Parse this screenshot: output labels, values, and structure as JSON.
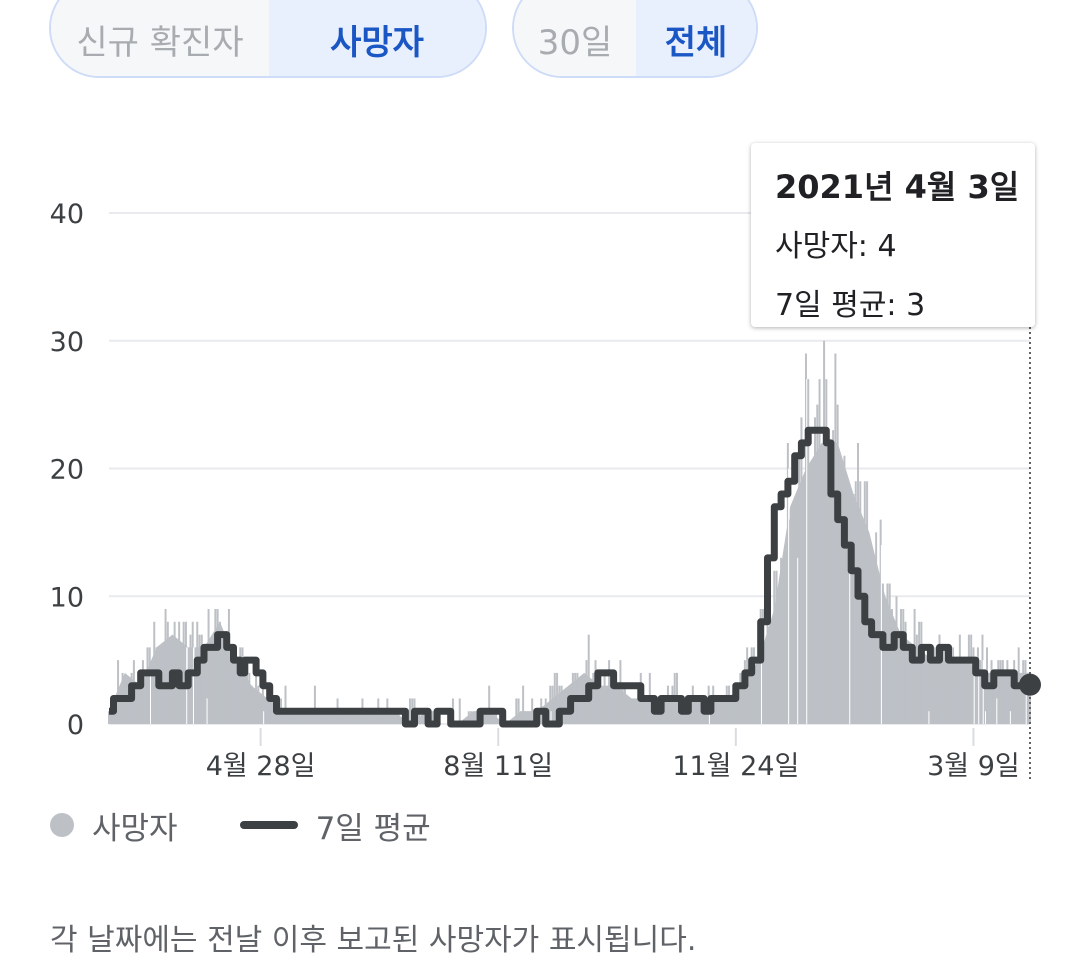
{
  "metric_toggle": {
    "options": [
      {
        "label": "신규 확진자",
        "selected": false
      },
      {
        "label": "사망자",
        "selected": true
      }
    ]
  },
  "range_toggle": {
    "options": [
      {
        "label": "30일",
        "selected": false
      },
      {
        "label": "전체",
        "selected": true
      }
    ]
  },
  "tooltip": {
    "date": "2021년 4월 3일",
    "deaths_text": "사망자: 4",
    "avg_text": "7일 평균: 3"
  },
  "legend": {
    "daily_label": "사망자",
    "avg_label": "7일 평균"
  },
  "footnote": "각 날짜에는 전날 이후 보고된 사망자가 표시됩니다.",
  "colors": {
    "bar": "#bdc1c6",
    "area": "#bdc1c6",
    "line": "#3c4043",
    "grid": "#e8eaed",
    "accent": "#1a56c4"
  },
  "chart_data": {
    "type": "bar",
    "title": "",
    "xlabel": "",
    "ylabel": "",
    "ylim": [
      0,
      43
    ],
    "yticks": [
      0,
      10,
      20,
      30,
      40
    ],
    "x_range": [
      "2020-02-21",
      "2021-04-03"
    ],
    "xticks": [
      {
        "date": "2020-04-28",
        "label": "4월 28일"
      },
      {
        "date": "2020-08-11",
        "label": "8월 11일"
      },
      {
        "date": "2020-11-24",
        "label": "11월 24일"
      },
      {
        "date": "2021-03-09",
        "label": "3월 9일"
      }
    ],
    "series": [
      {
        "name": "사망자",
        "kind": "daily_bars",
        "points": [
          [
            "2020-02-21",
            1
          ],
          [
            "2020-02-28",
            4
          ],
          [
            "2020-03-06",
            3
          ],
          [
            "2020-03-13",
            6
          ],
          [
            "2020-03-20",
            7
          ],
          [
            "2020-03-27",
            6
          ],
          [
            "2020-04-03",
            6
          ],
          [
            "2020-04-10",
            8
          ],
          [
            "2020-04-17",
            5
          ],
          [
            "2020-04-24",
            3
          ],
          [
            "2020-05-01",
            2
          ],
          [
            "2020-05-08",
            1
          ],
          [
            "2020-05-15",
            1
          ],
          [
            "2020-05-22",
            1
          ],
          [
            "2020-05-29",
            1
          ],
          [
            "2020-06-05",
            1
          ],
          [
            "2020-06-12",
            1
          ],
          [
            "2020-06-19",
            1
          ],
          [
            "2020-06-26",
            1
          ],
          [
            "2020-07-03",
            0
          ],
          [
            "2020-07-10",
            1
          ],
          [
            "2020-07-17",
            0
          ],
          [
            "2020-07-24",
            0
          ],
          [
            "2020-07-31",
            1
          ],
          [
            "2020-08-07",
            1
          ],
          [
            "2020-08-14",
            0
          ],
          [
            "2020-08-21",
            1
          ],
          [
            "2020-08-28",
            1
          ],
          [
            "2020-09-04",
            2
          ],
          [
            "2020-09-11",
            3
          ],
          [
            "2020-09-18",
            4
          ],
          [
            "2020-09-25",
            3
          ],
          [
            "2020-10-02",
            3
          ],
          [
            "2020-10-09",
            2
          ],
          [
            "2020-10-16",
            2
          ],
          [
            "2020-10-23",
            2
          ],
          [
            "2020-10-30",
            2
          ],
          [
            "2020-11-06",
            2
          ],
          [
            "2020-11-13",
            2
          ],
          [
            "2020-11-20",
            2
          ],
          [
            "2020-11-27",
            3
          ],
          [
            "2020-12-04",
            5
          ],
          [
            "2020-12-11",
            9
          ],
          [
            "2020-12-18",
            17
          ],
          [
            "2020-12-25",
            20
          ],
          [
            "2021-01-01",
            22
          ],
          [
            "2021-01-08",
            22
          ],
          [
            "2021-01-15",
            18
          ],
          [
            "2021-01-22",
            15
          ],
          [
            "2021-01-29",
            10
          ],
          [
            "2021-02-05",
            7
          ],
          [
            "2021-02-12",
            6
          ],
          [
            "2021-02-19",
            5
          ],
          [
            "2021-02-26",
            5
          ],
          [
            "2021-03-05",
            5
          ],
          [
            "2021-03-12",
            4
          ],
          [
            "2021-03-19",
            4
          ],
          [
            "2021-03-26",
            4
          ],
          [
            "2021-04-03",
            4
          ]
        ]
      },
      {
        "name": "7일 평균",
        "kind": "step_line",
        "points": [
          [
            "2020-02-21",
            1
          ],
          [
            "2020-02-23",
            2
          ],
          [
            "2020-03-02",
            3
          ],
          [
            "2020-03-06",
            4
          ],
          [
            "2020-03-12",
            4
          ],
          [
            "2020-03-14",
            3
          ],
          [
            "2020-03-20",
            4
          ],
          [
            "2020-03-23",
            3
          ],
          [
            "2020-03-27",
            4
          ],
          [
            "2020-03-31",
            5
          ],
          [
            "2020-04-03",
            6
          ],
          [
            "2020-04-09",
            7
          ],
          [
            "2020-04-13",
            6
          ],
          [
            "2020-04-16",
            5
          ],
          [
            "2020-04-19",
            4
          ],
          [
            "2020-04-21",
            5
          ],
          [
            "2020-04-26",
            4
          ],
          [
            "2020-04-29",
            3
          ],
          [
            "2020-05-02",
            2
          ],
          [
            "2020-05-05",
            1
          ],
          [
            "2020-06-29",
            1
          ],
          [
            "2020-07-01",
            0
          ],
          [
            "2020-07-05",
            1
          ],
          [
            "2020-07-11",
            0
          ],
          [
            "2020-07-15",
            1
          ],
          [
            "2020-07-21",
            0
          ],
          [
            "2020-07-24",
            0
          ],
          [
            "2020-08-01",
            0
          ],
          [
            "2020-08-03",
            1
          ],
          [
            "2020-08-13",
            0
          ],
          [
            "2020-08-20",
            0
          ],
          [
            "2020-08-28",
            1
          ],
          [
            "2020-09-01",
            0
          ],
          [
            "2020-09-07",
            1
          ],
          [
            "2020-09-12",
            2
          ],
          [
            "2020-09-20",
            3
          ],
          [
            "2020-09-24",
            4
          ],
          [
            "2020-10-01",
            3
          ],
          [
            "2020-10-13",
            2
          ],
          [
            "2020-10-19",
            1
          ],
          [
            "2020-10-22",
            2
          ],
          [
            "2020-10-31",
            1
          ],
          [
            "2020-11-03",
            2
          ],
          [
            "2020-11-10",
            1
          ],
          [
            "2020-11-13",
            2
          ],
          [
            "2020-11-24",
            3
          ],
          [
            "2020-11-28",
            4
          ],
          [
            "2020-12-01",
            5
          ],
          [
            "2020-12-05",
            8
          ],
          [
            "2020-12-08",
            13
          ],
          [
            "2020-12-11",
            17
          ],
          [
            "2020-12-14",
            18
          ],
          [
            "2020-12-17",
            19
          ],
          [
            "2020-12-20",
            21
          ],
          [
            "2020-12-23",
            22
          ],
          [
            "2020-12-26",
            23
          ],
          [
            "2021-01-03",
            22
          ],
          [
            "2021-01-05",
            18
          ],
          [
            "2021-01-08",
            16
          ],
          [
            "2021-01-11",
            14
          ],
          [
            "2021-01-14",
            12
          ],
          [
            "2021-01-17",
            10
          ],
          [
            "2021-01-20",
            8
          ],
          [
            "2021-01-23",
            7
          ],
          [
            "2021-01-28",
            6
          ],
          [
            "2021-02-02",
            7
          ],
          [
            "2021-02-06",
            6
          ],
          [
            "2021-02-10",
            5
          ],
          [
            "2021-02-14",
            6
          ],
          [
            "2021-02-18",
            5
          ],
          [
            "2021-02-22",
            6
          ],
          [
            "2021-02-26",
            5
          ],
          [
            "2021-03-04",
            5
          ],
          [
            "2021-03-10",
            4
          ],
          [
            "2021-03-14",
            3
          ],
          [
            "2021-03-18",
            4
          ],
          [
            "2021-03-23",
            4
          ],
          [
            "2021-03-27",
            3
          ],
          [
            "2021-04-03",
            3
          ]
        ]
      }
    ],
    "annotations": [
      {
        "type": "hover_marker",
        "date": "2021-04-03",
        "value": 3
      }
    ],
    "grid": true,
    "legend_position": "bottom-left"
  }
}
